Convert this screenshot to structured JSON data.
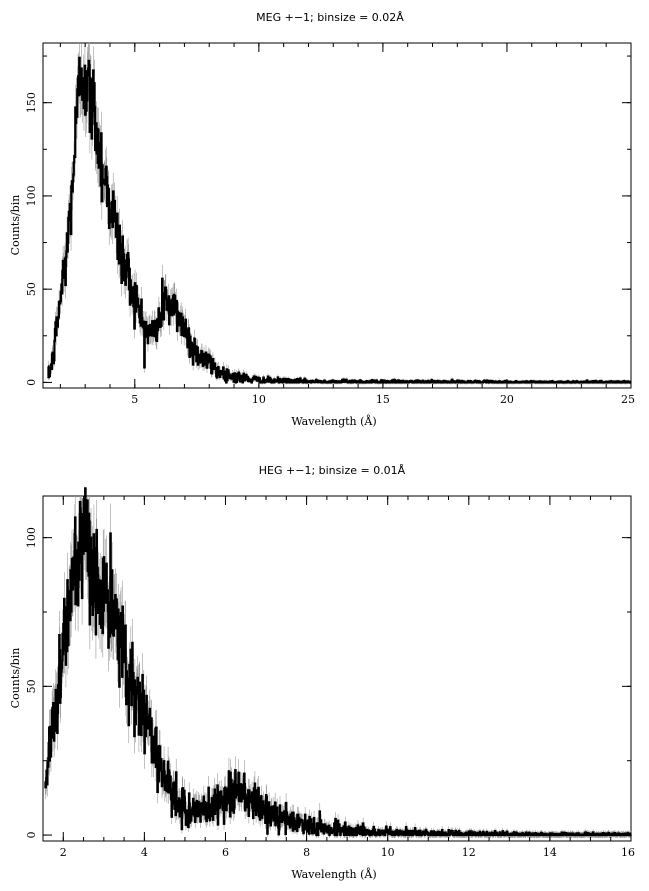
{
  "chart_data": [
    {
      "type": "line",
      "title": "MEG +−1; binsize = 0.02Å",
      "xlabel": "Wavelength (Å)",
      "ylabel": "Counts/bin",
      "xlim": [
        1.3,
        25
      ],
      "ylim": [
        -3,
        182
      ],
      "grid": false,
      "x_ticks": [
        5,
        10,
        15,
        20,
        25
      ],
      "y_ticks": [
        0,
        50,
        100,
        150
      ],
      "binsize": 0.02,
      "series": [
        {
          "values": [
            [
              1.5,
              3
            ],
            [
              1.7,
              12
            ],
            [
              1.9,
              35
            ],
            [
              2.1,
              55
            ],
            [
              2.3,
              75
            ],
            [
              2.5,
              110
            ],
            [
              2.7,
              148
            ],
            [
              2.85,
              168
            ],
            [
              3.0,
              165
            ],
            [
              3.2,
              150
            ],
            [
              3.4,
              145
            ],
            [
              3.6,
              122
            ],
            [
              3.8,
              110
            ],
            [
              4.0,
              98
            ],
            [
              4.2,
              85
            ],
            [
              4.4,
              72
            ],
            [
              4.6,
              62
            ],
            [
              4.8,
              55
            ],
            [
              5.0,
              46
            ],
            [
              5.2,
              36
            ],
            [
              5.4,
              30
            ],
            [
              5.6,
              26
            ],
            [
              5.8,
              28
            ],
            [
              6.0,
              32
            ],
            [
              6.2,
              48
            ],
            [
              6.4,
              40
            ],
            [
              6.6,
              38
            ],
            [
              6.8,
              36
            ],
            [
              7.0,
              30
            ],
            [
              7.2,
              22
            ],
            [
              7.4,
              18
            ],
            [
              7.6,
              15
            ],
            [
              7.8,
              12
            ],
            [
              8.0,
              10
            ],
            [
              8.2,
              8
            ],
            [
              8.5,
              5
            ],
            [
              9.0,
              3
            ],
            [
              9.5,
              2
            ],
            [
              10.0,
              1
            ],
            [
              11.0,
              0.6
            ],
            [
              12.0,
              0.4
            ],
            [
              14.0,
              0.3
            ],
            [
              16.0,
              0.2
            ],
            [
              18.0,
              0.2
            ],
            [
              20.0,
              0.1
            ],
            [
              22.0,
              0.1
            ],
            [
              25.0,
              0.1
            ]
          ]
        }
      ]
    },
    {
      "type": "line",
      "title": "HEG +−1; binsize = 0.01Å",
      "xlabel": "Wavelength (Å)",
      "ylabel": "Counts/bin",
      "xlim": [
        1.5,
        16
      ],
      "ylim": [
        -2,
        114
      ],
      "grid": false,
      "x_ticks": [
        2,
        4,
        6,
        8,
        10,
        12,
        14,
        16
      ],
      "y_ticks": [
        0,
        50,
        100
      ],
      "binsize": 0.01,
      "series": [
        {
          "values": [
            [
              1.55,
              15
            ],
            [
              1.7,
              35
            ],
            [
              1.85,
              48
            ],
            [
              2.0,
              62
            ],
            [
              2.15,
              80
            ],
            [
              2.3,
              88
            ],
            [
              2.45,
              92
            ],
            [
              2.6,
              95
            ],
            [
              2.75,
              88
            ],
            [
              2.9,
              84
            ],
            [
              3.05,
              78
            ],
            [
              3.2,
              74
            ],
            [
              3.35,
              68
            ],
            [
              3.5,
              62
            ],
            [
              3.65,
              52
            ],
            [
              3.8,
              48
            ],
            [
              3.95,
              42
            ],
            [
              4.1,
              38
            ],
            [
              4.25,
              30
            ],
            [
              4.4,
              24
            ],
            [
              4.55,
              18
            ],
            [
              4.7,
              12
            ],
            [
              4.85,
              10
            ],
            [
              5.0,
              9
            ],
            [
              5.2,
              8
            ],
            [
              5.4,
              8
            ],
            [
              5.6,
              9
            ],
            [
              5.8,
              11
            ],
            [
              6.0,
              13
            ],
            [
              6.2,
              15
            ],
            [
              6.4,
              14
            ],
            [
              6.6,
              12
            ],
            [
              6.8,
              10
            ],
            [
              7.0,
              8
            ],
            [
              7.2,
              6
            ],
            [
              7.5,
              5
            ],
            [
              7.8,
              4
            ],
            [
              8.1,
              3
            ],
            [
              8.5,
              2
            ],
            [
              9.0,
              1.5
            ],
            [
              9.5,
              1
            ],
            [
              10.0,
              0.7
            ],
            [
              11.0,
              0.5
            ],
            [
              12.0,
              0.3
            ],
            [
              13.0,
              0.2
            ],
            [
              14.0,
              0.1
            ],
            [
              16.0,
              0.1
            ]
          ]
        }
      ]
    }
  ]
}
